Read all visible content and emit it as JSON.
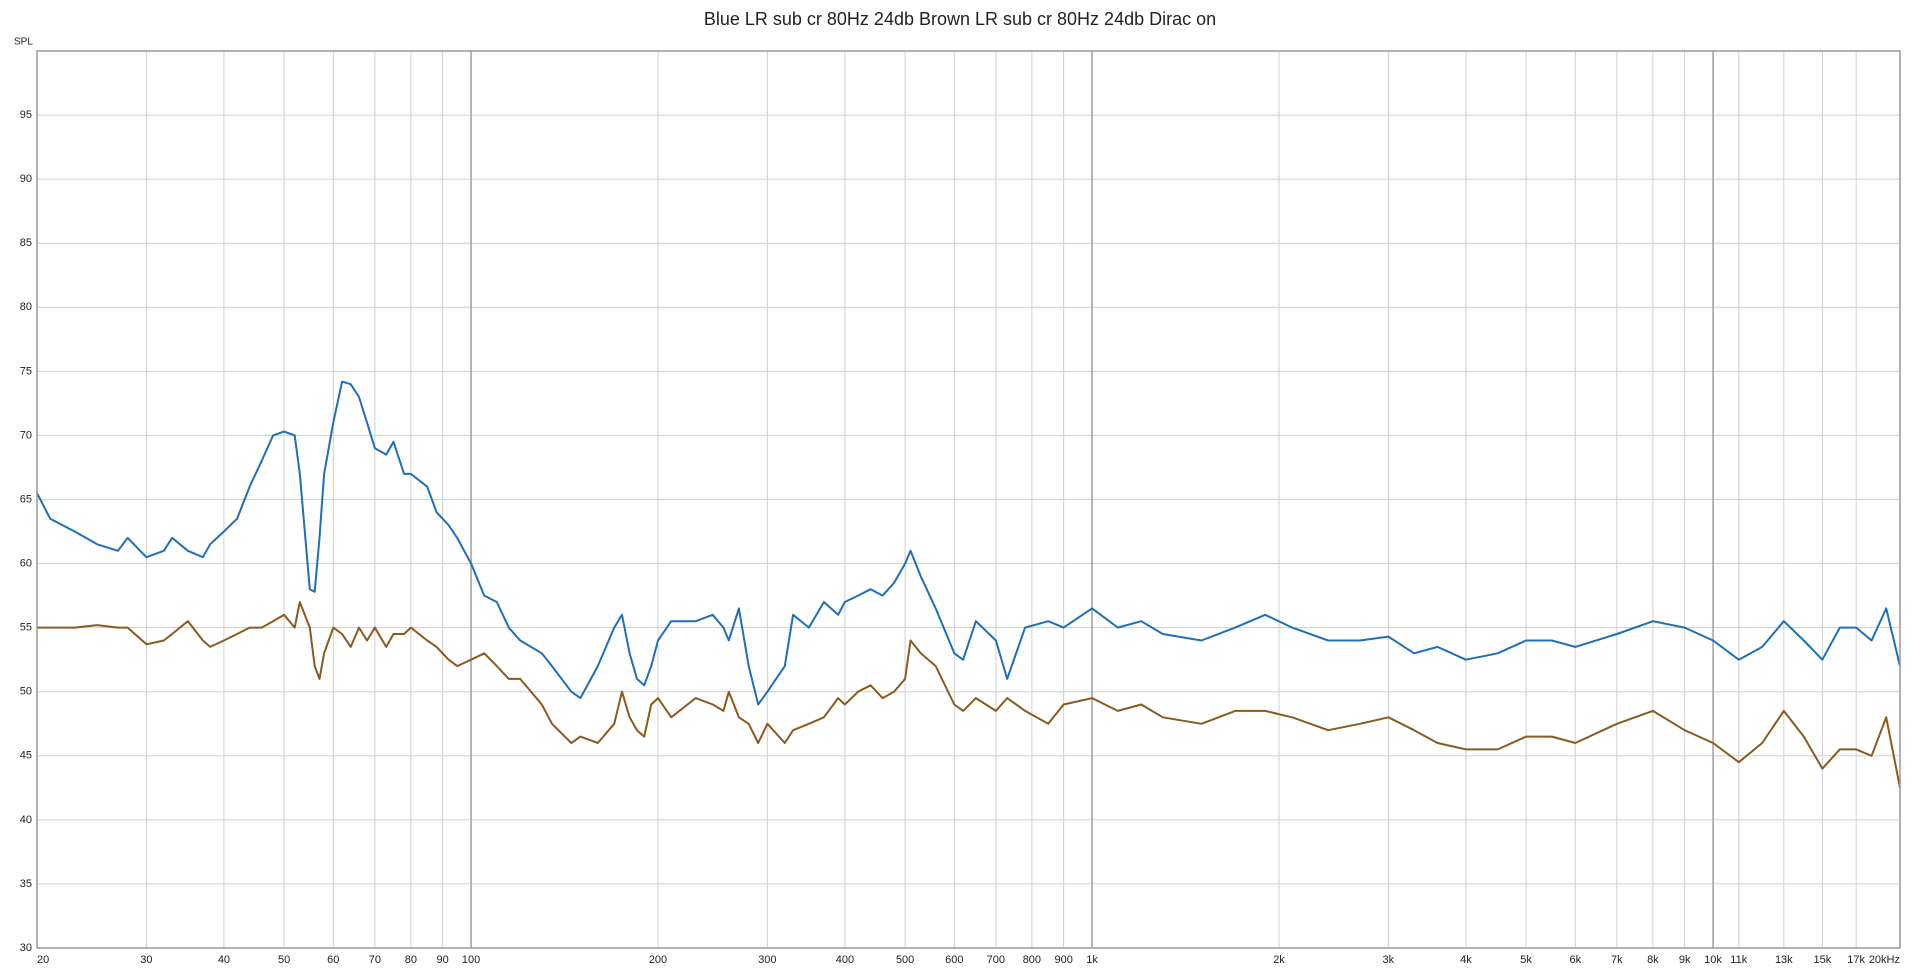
{
  "chart_data": {
    "type": "line",
    "title": "Blue LR sub cr 80Hz 24db Brown LR sub cr 80Hz 24db Dirac on",
    "y_label": "SPL",
    "log_x": true,
    "grid": true,
    "xlim": [
      20,
      20000
    ],
    "ylim": [
      30,
      100
    ],
    "yticks": [
      30,
      35,
      40,
      45,
      50,
      55,
      60,
      65,
      70,
      75,
      80,
      85,
      90,
      95
    ],
    "xticks": [
      20,
      30,
      40,
      50,
      60,
      70,
      80,
      90,
      100,
      200,
      300,
      400,
      500,
      600,
      700,
      800,
      900,
      {
        "value": 1000,
        "label": "1k"
      },
      {
        "value": 2000,
        "label": "2k"
      },
      {
        "value": 3000,
        "label": "3k"
      },
      {
        "value": 4000,
        "label": "4k"
      },
      {
        "value": 5000,
        "label": "5k"
      },
      {
        "value": 6000,
        "label": "6k"
      },
      {
        "value": 7000,
        "label": "7k"
      },
      {
        "value": 8000,
        "label": "8k"
      },
      {
        "value": 9000,
        "label": "9k"
      },
      {
        "value": 10000,
        "label": "10k"
      },
      {
        "value": 11000,
        "label": "11k"
      },
      {
        "value": 13000,
        "label": "13k"
      },
      {
        "value": 15000,
        "label": "15k"
      },
      {
        "value": 17000,
        "label": "17k"
      },
      {
        "value": 20000,
        "label": "20kHz"
      }
    ],
    "x": [
      20,
      21,
      23,
      25,
      27,
      28,
      30,
      32,
      33,
      35,
      37,
      38,
      40,
      42,
      44,
      46,
      48,
      50,
      52,
      53,
      55,
      56,
      57,
      58,
      60,
      62,
      64,
      66,
      68,
      70,
      73,
      75,
      78,
      80,
      85,
      88,
      92,
      95,
      100,
      105,
      110,
      115,
      120,
      130,
      135,
      145,
      150,
      160,
      170,
      175,
      180,
      185,
      190,
      195,
      200,
      210,
      230,
      245,
      255,
      260,
      270,
      280,
      290,
      300,
      320,
      330,
      350,
      370,
      390,
      400,
      420,
      440,
      460,
      480,
      500,
      510,
      530,
      560,
      600,
      620,
      650,
      700,
      730,
      780,
      850,
      900,
      1000,
      1100,
      1200,
      1300,
      1500,
      1700,
      1900,
      2100,
      2400,
      2700,
      3000,
      3300,
      3600,
      4000,
      4500,
      5000,
      5500,
      6000,
      7000,
      8000,
      9000,
      10000,
      11000,
      12000,
      13000,
      14000,
      15000,
      16000,
      17000,
      18000,
      19000,
      20000
    ],
    "series": [
      {
        "color": "#1f6fb8",
        "values": [
          65.5,
          63.5,
          62.5,
          61.5,
          61,
          62,
          60.5,
          61,
          62,
          61,
          60.5,
          61.5,
          62.5,
          63.5,
          66,
          68,
          70,
          70.3,
          70,
          67,
          58,
          57.8,
          62,
          67,
          71,
          74.2,
          74,
          73,
          71,
          69,
          68.5,
          69.5,
          67,
          67,
          66,
          64,
          63,
          62,
          60,
          57.5,
          57,
          55,
          54,
          53,
          52,
          50,
          49.5,
          52,
          55,
          56,
          53,
          51,
          50.5,
          52,
          54,
          55.5,
          55.5,
          56,
          55,
          54,
          56.5,
          52,
          49,
          50,
          52,
          56,
          55,
          57,
          56,
          57,
          57.5,
          58,
          57.5,
          58.5,
          60,
          61,
          59,
          56.5,
          53,
          52.5,
          55.5,
          54,
          51,
          55,
          55.5,
          55,
          56.5,
          55,
          55.5,
          54.5,
          54,
          55,
          56,
          55,
          54,
          54,
          54.3,
          53,
          53.5,
          52.5,
          53,
          54,
          54,
          53.5,
          54.5,
          55.5,
          55,
          54,
          52.5,
          53.5,
          55.5,
          54,
          52.5,
          55,
          55,
          54,
          56.5,
          52
        ]
      },
      {
        "color": "#8b5a1e",
        "values": [
          55,
          55,
          55,
          55.2,
          55,
          55,
          53.7,
          54,
          54.5,
          55.5,
          54,
          53.5,
          54,
          54.5,
          55,
          55,
          55.5,
          56,
          55,
          57,
          55,
          52,
          51,
          53,
          55,
          54.5,
          53.5,
          55,
          54,
          55,
          53.5,
          54.5,
          54.5,
          55,
          54,
          53.5,
          52.5,
          52,
          52.5,
          53,
          52,
          51,
          51,
          49,
          47.5,
          46,
          46.5,
          46,
          47.5,
          50,
          48,
          47,
          46.5,
          49,
          49.5,
          48,
          49.5,
          49,
          48.5,
          50,
          48,
          47.5,
          46,
          47.5,
          46,
          47,
          47.5,
          48,
          49.5,
          49,
          50,
          50.5,
          49.5,
          50,
          51,
          54,
          53,
          52,
          49,
          48.5,
          49.5,
          48.5,
          49.5,
          48.5,
          47.5,
          49,
          49.5,
          48.5,
          49,
          48,
          47.5,
          48.5,
          48.5,
          48,
          47,
          47.5,
          48,
          47,
          46,
          45.5,
          45.5,
          46.5,
          46.5,
          46,
          47.5,
          48.5,
          47,
          46,
          44.5,
          46,
          48.5,
          46.5,
          44,
          45.5,
          45.5,
          45,
          48,
          42.5
        ]
      }
    ]
  }
}
